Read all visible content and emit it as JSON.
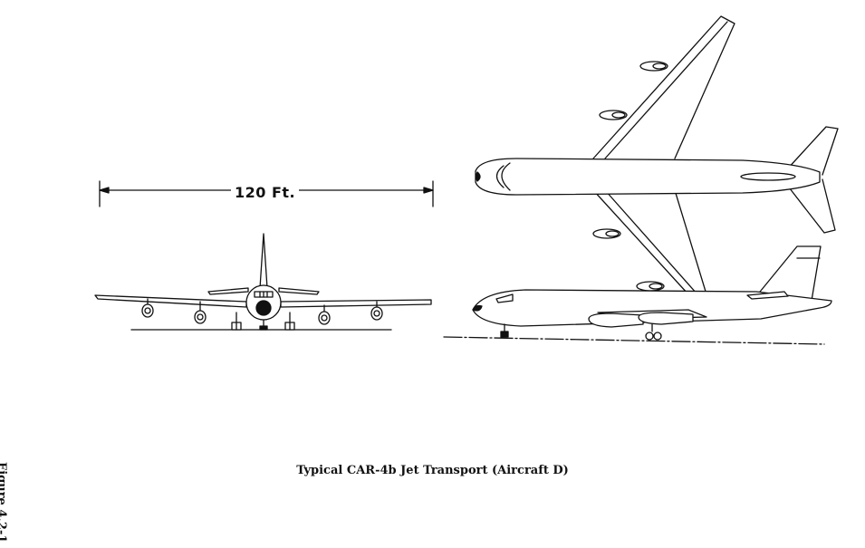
{
  "diagram": {
    "dimension_label": "120 Ft.",
    "figure_label": "Figure 4.2-1",
    "caption": "Typical CAR-4b Jet Transport (Aircraft D)"
  },
  "colors": {
    "ink": "#111111",
    "paper": "#ffffff"
  }
}
